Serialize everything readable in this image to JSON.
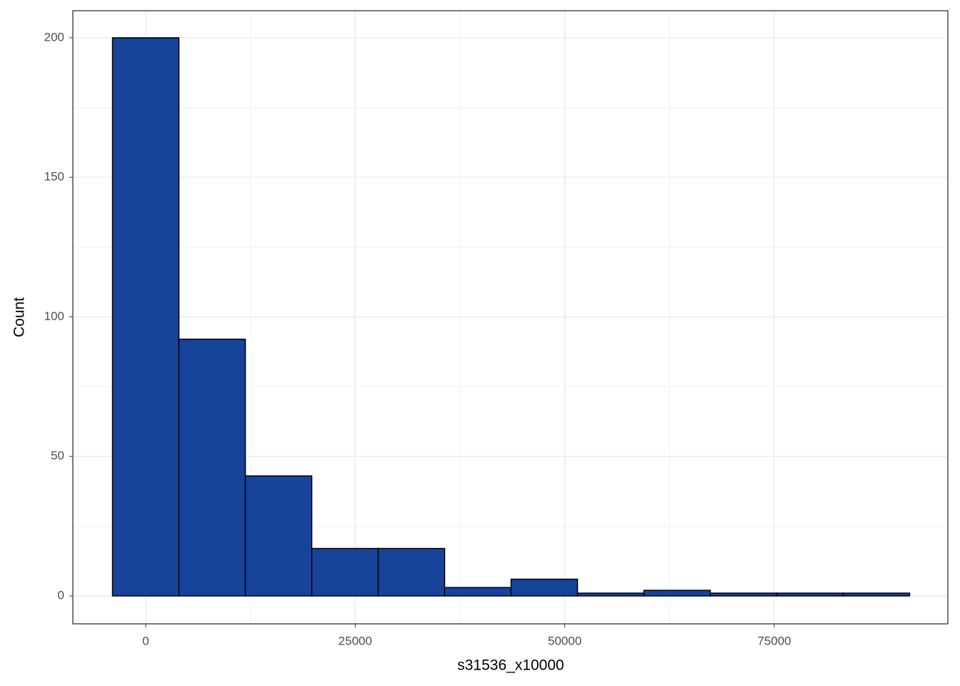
{
  "chart_data": {
    "type": "histogram",
    "x_label": "s31536_x10000",
    "y_label": "Count",
    "bins": [
      -3963,
      3963,
      11889,
      19815,
      27741,
      35667,
      43593,
      51519,
      59445,
      67371,
      75297,
      83223,
      91149
    ],
    "counts": [
      200,
      92,
      43,
      17,
      17,
      3,
      6,
      1,
      2,
      1,
      1,
      1
    ],
    "color": "#17439a",
    "edge_color": "#000000",
    "xlim": [
      -8693,
      95712
    ],
    "xticks": [
      0,
      25000,
      50000,
      75000
    ],
    "ylim": [
      -10,
      209.7
    ],
    "yticks": [
      0,
      50,
      100,
      150,
      200
    ],
    "grid": true,
    "minor_grid": true
  }
}
